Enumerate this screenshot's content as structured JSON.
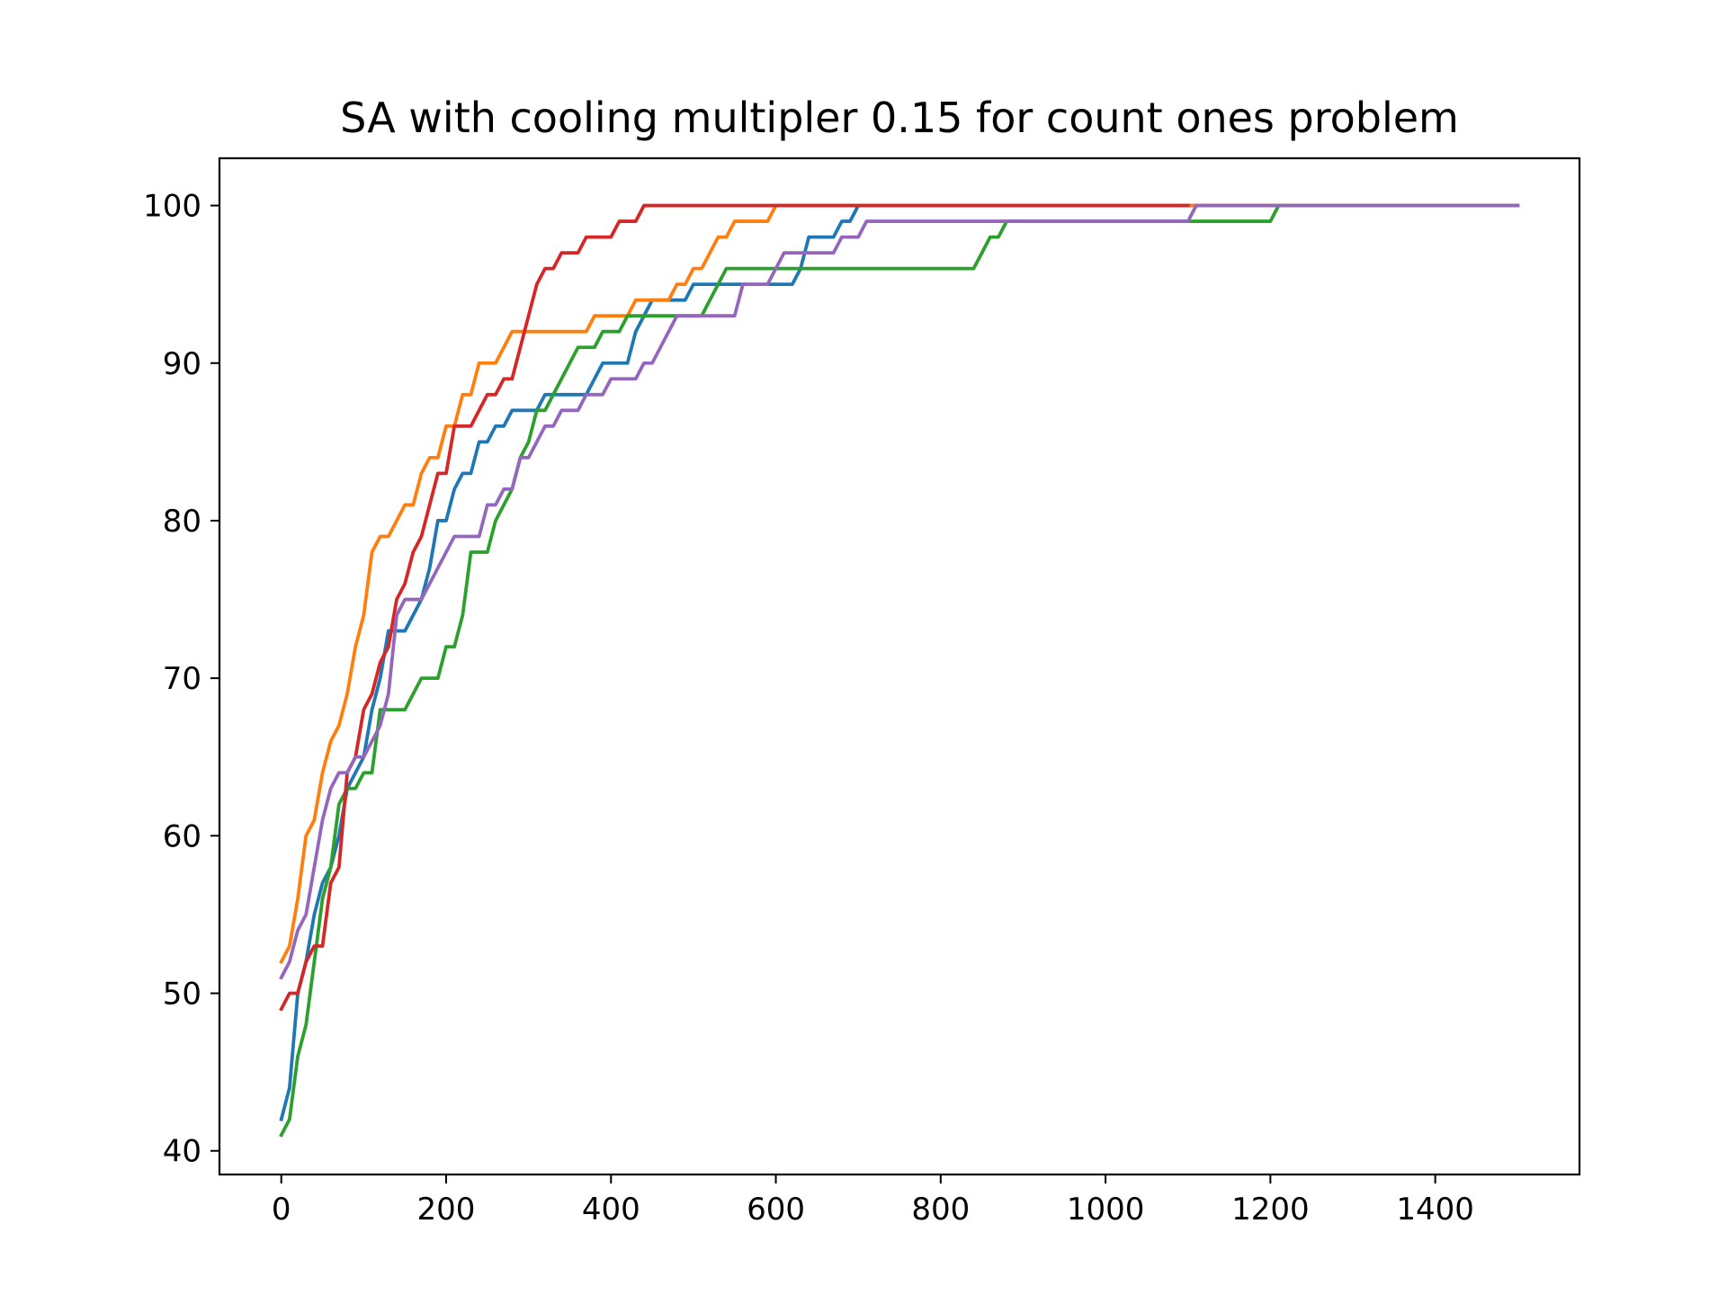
{
  "chart_data": {
    "type": "line",
    "title": "SA with cooling multipler 0.15 for count ones problem",
    "xlabel": "",
    "ylabel": "",
    "xlim": [
      -75,
      1575
    ],
    "ylim": [
      38.5,
      103
    ],
    "xticks": [
      0,
      200,
      400,
      600,
      800,
      1000,
      1200,
      1400
    ],
    "yticks": [
      40,
      50,
      60,
      70,
      80,
      90,
      100
    ],
    "grid": false,
    "legend": "none",
    "series": [
      {
        "color": "#1f77b4",
        "x": [
          0,
          10,
          20,
          30,
          40,
          50,
          60,
          70,
          80,
          90,
          100,
          110,
          120,
          130,
          140,
          150,
          160,
          170,
          180,
          190,
          200,
          210,
          220,
          230,
          240,
          250,
          260,
          270,
          280,
          290,
          300,
          310,
          320,
          330,
          340,
          350,
          360,
          370,
          380,
          390,
          400,
          410,
          420,
          430,
          440,
          450,
          460,
          470,
          480,
          490,
          500,
          510,
          520,
          530,
          540,
          550,
          560,
          570,
          580,
          590,
          600,
          610,
          620,
          630,
          640,
          650,
          660,
          670,
          680,
          690,
          700,
          1500
        ],
        "y": [
          42,
          44,
          50,
          52,
          55,
          57,
          58,
          60,
          63,
          64,
          65,
          68,
          70,
          73,
          73,
          73,
          74,
          75,
          77,
          80,
          80,
          82,
          83,
          83,
          85,
          85,
          86,
          86,
          87,
          87,
          87,
          87,
          88,
          88,
          88,
          88,
          88,
          88,
          89,
          90,
          90,
          90,
          90,
          92,
          93,
          94,
          94,
          94,
          94,
          94,
          95,
          95,
          95,
          95,
          95,
          95,
          95,
          95,
          95,
          95,
          95,
          95,
          95,
          96,
          98,
          98,
          98,
          98,
          99,
          99,
          100,
          100
        ]
      },
      {
        "color": "#ff7f0e",
        "x": [
          0,
          10,
          20,
          30,
          40,
          50,
          60,
          70,
          80,
          90,
          100,
          110,
          120,
          130,
          140,
          150,
          160,
          170,
          180,
          190,
          200,
          210,
          220,
          230,
          240,
          250,
          260,
          270,
          280,
          290,
          300,
          310,
          320,
          330,
          340,
          350,
          360,
          370,
          380,
          390,
          400,
          410,
          420,
          430,
          440,
          450,
          460,
          470,
          480,
          490,
          500,
          510,
          520,
          530,
          540,
          550,
          560,
          570,
          580,
          590,
          600,
          1500
        ],
        "y": [
          52,
          53,
          56,
          60,
          61,
          64,
          66,
          67,
          69,
          72,
          74,
          78,
          79,
          79,
          80,
          81,
          81,
          83,
          84,
          84,
          86,
          86,
          88,
          88,
          90,
          90,
          90,
          91,
          92,
          92,
          92,
          92,
          92,
          92,
          92,
          92,
          92,
          92,
          93,
          93,
          93,
          93,
          93,
          94,
          94,
          94,
          94,
          94,
          95,
          95,
          96,
          96,
          97,
          98,
          98,
          99,
          99,
          99,
          99,
          99,
          100,
          100
        ]
      },
      {
        "color": "#2ca02c",
        "x": [
          0,
          10,
          20,
          30,
          40,
          50,
          60,
          70,
          80,
          90,
          100,
          110,
          120,
          130,
          140,
          150,
          160,
          170,
          180,
          190,
          200,
          210,
          220,
          230,
          240,
          250,
          260,
          270,
          280,
          290,
          300,
          310,
          320,
          330,
          340,
          350,
          360,
          370,
          380,
          390,
          400,
          410,
          420,
          430,
          440,
          450,
          460,
          470,
          480,
          490,
          500,
          510,
          520,
          530,
          540,
          550,
          560,
          570,
          580,
          590,
          600,
          840,
          850,
          860,
          870,
          880,
          890,
          1200,
          1210,
          1500
        ],
        "y": [
          41,
          42,
          46,
          48,
          52,
          56,
          58,
          62,
          63,
          63,
          64,
          64,
          68,
          68,
          68,
          68,
          69,
          70,
          70,
          70,
          72,
          72,
          74,
          78,
          78,
          78,
          80,
          81,
          82,
          84,
          85,
          87,
          87,
          88,
          89,
          90,
          91,
          91,
          91,
          92,
          92,
          92,
          93,
          93,
          93,
          93,
          93,
          93,
          93,
          93,
          93,
          93,
          94,
          95,
          96,
          96,
          96,
          96,
          96,
          96,
          96,
          96,
          97,
          98,
          98,
          99,
          99,
          99,
          100,
          100
        ]
      },
      {
        "color": "#d62728",
        "x": [
          0,
          10,
          20,
          30,
          40,
          50,
          60,
          70,
          80,
          90,
          100,
          110,
          120,
          130,
          140,
          150,
          160,
          170,
          180,
          190,
          200,
          210,
          220,
          230,
          240,
          250,
          260,
          270,
          280,
          290,
          300,
          310,
          320,
          330,
          340,
          350,
          360,
          370,
          380,
          390,
          400,
          410,
          420,
          430,
          440,
          1100
        ],
        "y": [
          49,
          50,
          50,
          52,
          53,
          53,
          57,
          58,
          64,
          65,
          68,
          69,
          71,
          72,
          75,
          76,
          78,
          79,
          81,
          83,
          83,
          86,
          86,
          86,
          87,
          88,
          88,
          89,
          89,
          91,
          93,
          95,
          96,
          96,
          97,
          97,
          97,
          98,
          98,
          98,
          98,
          99,
          99,
          99,
          100,
          100
        ]
      },
      {
        "color": "#9467bd",
        "x": [
          0,
          10,
          20,
          30,
          40,
          50,
          60,
          70,
          80,
          90,
          100,
          110,
          120,
          130,
          140,
          150,
          160,
          170,
          180,
          190,
          200,
          210,
          220,
          230,
          240,
          250,
          260,
          270,
          280,
          290,
          300,
          310,
          320,
          330,
          340,
          350,
          360,
          370,
          380,
          390,
          400,
          410,
          420,
          430,
          440,
          450,
          460,
          470,
          480,
          490,
          500,
          510,
          520,
          530,
          540,
          550,
          560,
          570,
          580,
          590,
          600,
          610,
          620,
          630,
          640,
          650,
          660,
          670,
          680,
          690,
          700,
          710,
          1100,
          1110,
          1500
        ],
        "y": [
          51,
          52,
          54,
          55,
          58,
          61,
          63,
          64,
          64,
          65,
          65,
          66,
          67,
          69,
          74,
          75,
          75,
          75,
          76,
          77,
          78,
          79,
          79,
          79,
          79,
          81,
          81,
          82,
          82,
          84,
          84,
          85,
          86,
          86,
          87,
          87,
          87,
          88,
          88,
          88,
          89,
          89,
          89,
          89,
          90,
          90,
          91,
          92,
          93,
          93,
          93,
          93,
          93,
          93,
          93,
          93,
          95,
          95,
          95,
          95,
          96,
          97,
          97,
          97,
          97,
          97,
          97,
          97,
          98,
          98,
          98,
          99,
          99,
          100,
          100
        ]
      }
    ]
  }
}
